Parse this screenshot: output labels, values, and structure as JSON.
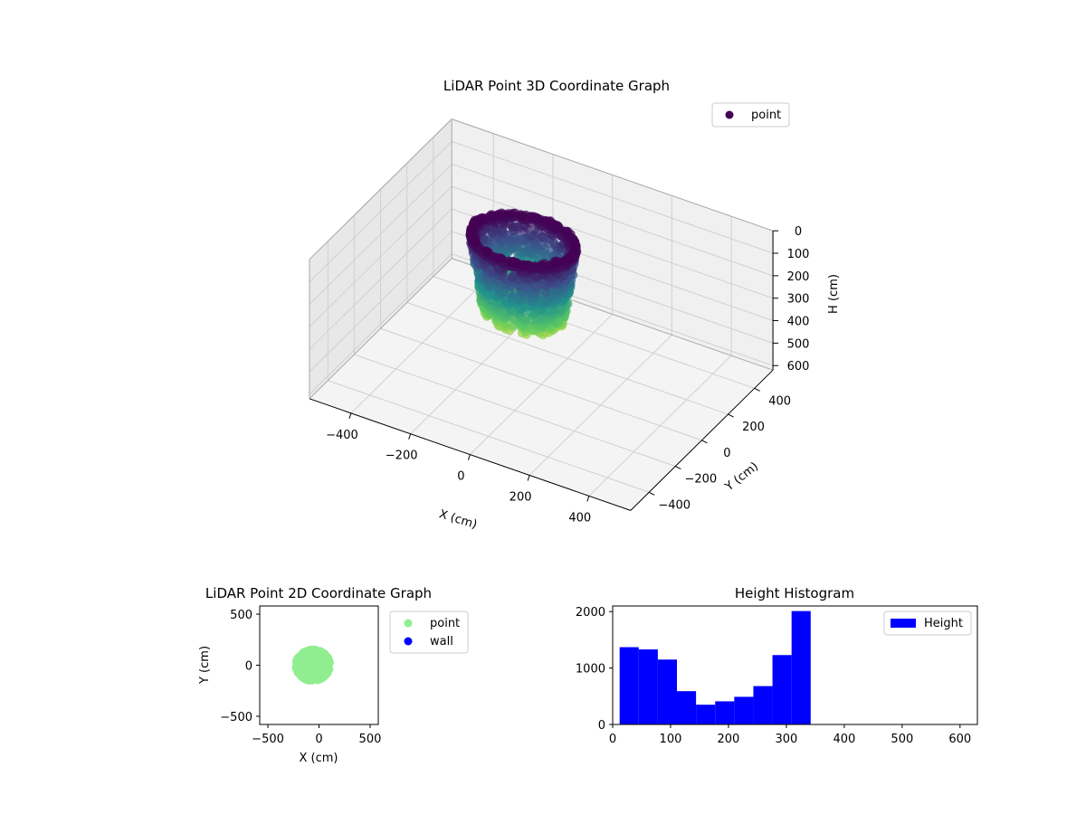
{
  "figure": {
    "background": "#ffffff"
  },
  "chart_data": [
    {
      "type": "scatter",
      "projection": "3d",
      "title": "LiDAR Point 3D Coordinate Graph",
      "xlabel": "X (cm)",
      "ylabel": "Y (cm)",
      "zlabel": "H (cm)",
      "xlim": [
        -540,
        540
      ],
      "ylim": [
        -540,
        540
      ],
      "zlim": [
        0,
        620
      ],
      "z_inverted": true,
      "xticks": [
        "−400",
        "−200",
        "0",
        "200",
        "400"
      ],
      "yticks": [
        "−400",
        "−200",
        "0",
        "200",
        "400"
      ],
      "zticks": [
        "0",
        "100",
        "200",
        "300",
        "400",
        "500",
        "600"
      ],
      "colormap": "viridis",
      "legend": {
        "entries": [
          {
            "label": "point",
            "color": "#440154"
          }
        ],
        "placement": "top-right"
      },
      "series": [
        {
          "name": "point",
          "description_of_shape": "tubular wall of points around x≈-120..200, y≈-300..300, heights 0..340 colored by height",
          "center_xy": [
            -60,
            0
          ],
          "radius_xy": [
            160,
            150
          ],
          "height_range": [
            0,
            340
          ]
        }
      ],
      "grid": true
    },
    {
      "type": "scatter",
      "title": "LiDAR Point 2D Coordinate Graph",
      "xlabel": "X (cm)",
      "ylabel": "Y (cm)",
      "xlim": [
        -580,
        580
      ],
      "ylim": [
        -580,
        580
      ],
      "xticks": [
        -500,
        0,
        500
      ],
      "yticks": [
        -500,
        0,
        500
      ],
      "xtick_labels": [
        "−500",
        "0",
        "500"
      ],
      "ytick_labels": [
        "−500",
        "0",
        "500"
      ],
      "legend": {
        "placement": "outside-right",
        "entries": [
          {
            "label": "point",
            "color": "#90ee90"
          },
          {
            "label": "wall",
            "color": "#0000ff"
          }
        ]
      },
      "series": [
        {
          "name": "point",
          "color": "#90ee90",
          "center": [
            -60,
            0
          ],
          "radius": [
            165,
            150
          ]
        },
        {
          "name": "wall",
          "color": "#0000ff",
          "points": []
        }
      ]
    },
    {
      "type": "bar",
      "title": "Height Histogram",
      "xlim": [
        0,
        630
      ],
      "ylim": [
        0,
        2100
      ],
      "xticks": [
        0,
        100,
        200,
        300,
        400,
        500,
        600
      ],
      "yticks": [
        0,
        1000,
        2000
      ],
      "bin_edges": [
        12,
        45,
        78,
        111,
        144,
        177,
        210,
        243,
        276,
        309,
        342
      ],
      "values": [
        1370,
        1330,
        1150,
        590,
        350,
        410,
        490,
        680,
        1230,
        2010
      ],
      "color": "#0000ff",
      "legend": {
        "placement": "top-right",
        "entries": [
          {
            "label": "Height",
            "color": "#0000ff"
          }
        ]
      }
    }
  ]
}
